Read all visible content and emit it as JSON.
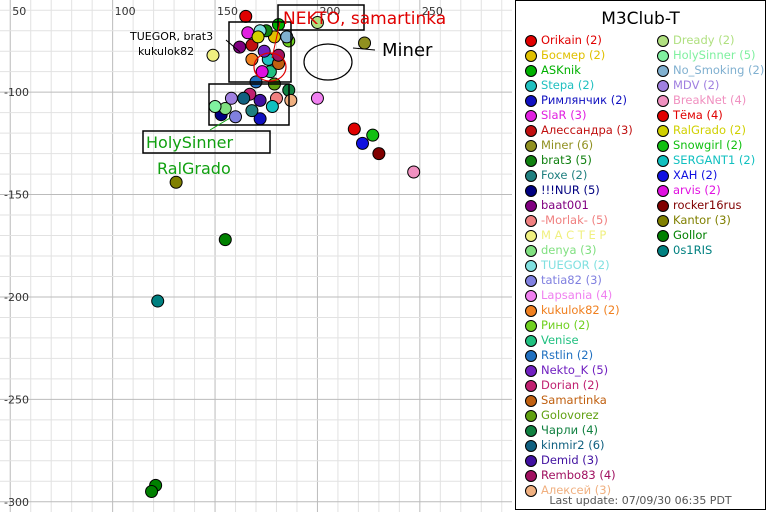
{
  "chart_data": {
    "type": "scatter",
    "title": "M3Club-T",
    "x_ticks": [
      50,
      100,
      150,
      200,
      250
    ],
    "y_ticks": [
      -100,
      -150,
      -200,
      -250,
      -300
    ],
    "xlim": [
      45,
      295
    ],
    "ylim": [
      -305,
      -55
    ],
    "grid": true,
    "legend_placement": "right",
    "series": [
      {
        "name": "Orikain (2)",
        "color": "#e00000",
        "points": [
          [
            165,
            -63
          ]
        ]
      },
      {
        "name": "Босмер (2)",
        "color": "#e0c000",
        "points": [
          [
            179,
            -73
          ]
        ]
      },
      {
        "name": "ASKnik",
        "color": "#00b000",
        "points": [
          [
            181,
            -67
          ]
        ]
      },
      {
        "name": "Stepa (2)",
        "color": "#20c0c0",
        "points": [
          [
            176,
            -84
          ]
        ]
      },
      {
        "name": "Римлянчик (2)",
        "color": "#1010c0",
        "points": [
          [
            172,
            -113
          ]
        ]
      },
      {
        "name": "SlaR (3)",
        "color": "#e020e0",
        "points": [
          [
            166,
            -71
          ]
        ]
      },
      {
        "name": "Алессандра (3)",
        "color": "#c01010",
        "points": [
          [
            168,
            -77
          ]
        ]
      },
      {
        "name": "Miner (6)",
        "color": "#909020",
        "points": [
          [
            223,
            -76
          ]
        ]
      },
      {
        "name": "brat3 (5)",
        "color": "#108010",
        "points": [
          [
            175,
            -70
          ]
        ]
      },
      {
        "name": "Foxe (2)",
        "color": "#208080",
        "points": [
          [
            168,
            -109
          ]
        ]
      },
      {
        "name": "!!!NUR (5)",
        "color": "#000080",
        "points": [
          [
            153,
            -111
          ]
        ]
      },
      {
        "name": "baat001",
        "color": "#800080",
        "points": [
          [
            162,
            -78
          ]
        ]
      },
      {
        "name": "-Morlak- (5)",
        "color": "#f08080",
        "points": [
          [
            180,
            -103
          ]
        ]
      },
      {
        "name": "М А С Т Е Р",
        "color": "#f0f080",
        "points": [
          [
            149,
            -82
          ]
        ]
      },
      {
        "name": "denya (3)",
        "color": "#80e080",
        "points": [
          [
            155,
            -108
          ]
        ]
      },
      {
        "name": "TUEGOR (2)",
        "color": "#80e0e0",
        "points": [
          [
            172,
            -70
          ]
        ]
      },
      {
        "name": "tatia82 (3)",
        "color": "#8080e0",
        "points": [
          [
            160,
            -112
          ]
        ]
      },
      {
        "name": "Lapsania (4)",
        "color": "#f080f0",
        "points": [
          [
            200,
            -103
          ]
        ]
      },
      {
        "name": "kukulok82 (2)",
        "color": "#f08020",
        "points": [
          [
            168,
            -84
          ]
        ]
      },
      {
        "name": "Рино (2)",
        "color": "#70d020",
        "points": [
          [
            186,
            -75
          ]
        ]
      },
      {
        "name": "Venise",
        "color": "#20c080",
        "points": [
          [
            177,
            -90
          ]
        ]
      },
      {
        "name": "Rstlin (2)",
        "color": "#2070c0",
        "points": [
          [
            170,
            -95
          ]
        ]
      },
      {
        "name": "Nekto_K (5)",
        "color": "#7020c0",
        "points": [
          [
            174,
            -80
          ]
        ]
      },
      {
        "name": "Dorian (2)",
        "color": "#c02070",
        "points": [
          [
            167,
            -101
          ]
        ]
      },
      {
        "name": "Samartinka",
        "color": "#c06010",
        "points": [
          [
            181,
            -86
          ]
        ]
      },
      {
        "name": "Golovorez",
        "color": "#60a010",
        "points": [
          [
            179,
            -96
          ]
        ]
      },
      {
        "name": "Чарли (4)",
        "color": "#108040",
        "points": [
          [
            186,
            -99
          ]
        ]
      },
      {
        "name": "kinmir2 (6)",
        "color": "#106080",
        "points": [
          [
            164,
            -103
          ]
        ]
      },
      {
        "name": "Demid (3)",
        "color": "#4010a0",
        "points": [
          [
            172,
            -104
          ]
        ]
      },
      {
        "name": "Rembo83 (4)",
        "color": "#a01060",
        "points": [
          [
            181,
            -82
          ]
        ]
      },
      {
        "name": "Алексей (3)",
        "color": "#f0b080",
        "points": [
          [
            187,
            -104
          ]
        ]
      },
      {
        "name": "Dready (2)",
        "color": "#b0e080",
        "points": [
          [
            200,
            -66
          ]
        ]
      },
      {
        "name": "HolySinner (5)",
        "color": "#80f0a0",
        "points": [
          [
            150,
            -107
          ]
        ]
      },
      {
        "name": "No_Smoking (2)",
        "color": "#80b0d0",
        "points": [
          [
            185,
            -73
          ]
        ]
      },
      {
        "name": "MDV (2)",
        "color": "#a080e0",
        "points": [
          [
            158,
            -103
          ]
        ]
      },
      {
        "name": "BreakNet (4)",
        "color": "#f090c0",
        "points": [
          [
            247,
            -139
          ]
        ]
      },
      {
        "name": "Тёма (4)",
        "color": "#e00000",
        "points": [
          [
            218,
            -118
          ]
        ]
      },
      {
        "name": "RalGrado (2)",
        "color": "#d0d000",
        "points": [
          [
            171,
            -73
          ]
        ]
      },
      {
        "name": "Snowgirl (2)",
        "color": "#10c010",
        "points": [
          [
            227,
            -121
          ]
        ]
      },
      {
        "name": "SERGANT1 (2)",
        "color": "#10c0c0",
        "points": [
          [
            178,
            -107
          ]
        ]
      },
      {
        "name": "ХАН (2)",
        "color": "#1010e0",
        "points": [
          [
            222,
            -125
          ]
        ]
      },
      {
        "name": "arvis (2)",
        "color": "#e010e0",
        "points": [
          [
            173,
            -90
          ]
        ]
      },
      {
        "name": "rocker16rus",
        "color": "#800000",
        "points": [
          [
            230,
            -130
          ]
        ]
      },
      {
        "name": "Kantor (3)",
        "color": "#808000",
        "points": [
          [
            131,
            -144
          ]
        ]
      },
      {
        "name": "Gollor",
        "color": "#008000",
        "points": [
          [
            155,
            -172
          ],
          [
            121,
            -292
          ],
          [
            119,
            -295
          ]
        ]
      },
      {
        "name": "0s1RIS",
        "color": "#008080",
        "points": [
          [
            122,
            -202
          ]
        ]
      }
    ]
  },
  "legend": {
    "left": [
      {
        "label": "Orikain (2)",
        "color": "#e00000"
      },
      {
        "label": "Босмер (2)",
        "color": "#e0c000"
      },
      {
        "label": "ASKnik",
        "color": "#00b000"
      },
      {
        "label": "Stepa (2)",
        "color": "#20c0c0"
      },
      {
        "label": "Римлянчик (2)",
        "color": "#1010c0"
      },
      {
        "label": "SlaR (3)",
        "color": "#e020e0"
      },
      {
        "label": "Алессандра (3)",
        "color": "#c01010"
      },
      {
        "label": "Miner (6)",
        "color": "#909020"
      },
      {
        "label": "brat3 (5)",
        "color": "#108010"
      },
      {
        "label": "Foxe (2)",
        "color": "#208080"
      },
      {
        "label": "!!!NUR (5)",
        "color": "#000080"
      },
      {
        "label": "baat001",
        "color": "#800080"
      },
      {
        "label": "-Morlak- (5)",
        "color": "#f08080"
      },
      {
        "label": "М А С Т Е Р",
        "color": "#f0f080"
      },
      {
        "label": "denya (3)",
        "color": "#80e080"
      },
      {
        "label": "TUEGOR (2)",
        "color": "#80e0e0"
      },
      {
        "label": "tatia82 (3)",
        "color": "#8080e0"
      },
      {
        "label": "Lapsania (4)",
        "color": "#f080f0"
      },
      {
        "label": "kukulok82 (2)",
        "color": "#f08020"
      },
      {
        "label": "Рино (2)",
        "color": "#70d020"
      },
      {
        "label": "Venise",
        "color": "#20c080"
      },
      {
        "label": "Rstlin (2)",
        "color": "#2070c0"
      },
      {
        "label": "Nekto_K (5)",
        "color": "#7020c0"
      },
      {
        "label": "Dorian (2)",
        "color": "#c02070"
      },
      {
        "label": "Samartinka",
        "color": "#c06010"
      },
      {
        "label": "Golovorez",
        "color": "#60a010"
      },
      {
        "label": "Чарли (4)",
        "color": "#108040"
      },
      {
        "label": "kinmir2 (6)",
        "color": "#106080"
      },
      {
        "label": "Demid (3)",
        "color": "#4010a0"
      },
      {
        "label": "Rembo83 (4)",
        "color": "#a01060"
      },
      {
        "label": "Алексей (3)",
        "color": "#f0b080"
      }
    ],
    "right": [
      {
        "label": "Dready (2)",
        "color": "#b0e080"
      },
      {
        "label": "HolySinner (5)",
        "color": "#80f0a0"
      },
      {
        "label": "No_Smoking (2)",
        "color": "#80b0d0"
      },
      {
        "label": "MDV (2)",
        "color": "#a080e0"
      },
      {
        "label": "BreakNet (4)",
        "color": "#f090c0"
      },
      {
        "label": "Тёма (4)",
        "color": "#e00000"
      },
      {
        "label": "RalGrado (2)",
        "color": "#d0d000"
      },
      {
        "label": "Snowgirl (2)",
        "color": "#10c010"
      },
      {
        "label": "SERGANT1 (2)",
        "color": "#10c0c0"
      },
      {
        "label": "ХАН (2)",
        "color": "#1010e0"
      },
      {
        "label": "arvis (2)",
        "color": "#e010e0"
      },
      {
        "label": "rocker16rus",
        "color": "#800000"
      },
      {
        "label": "Kantor (3)",
        "color": "#808000"
      },
      {
        "label": "Gollor",
        "color": "#008000"
      },
      {
        "label": "0s1RIS",
        "color": "#008080"
      }
    ]
  },
  "annotations": [
    {
      "text": "NEKTO, samartinka",
      "color": "#e00000"
    },
    {
      "text": "TUEGOR, brat3",
      "color": "#000000"
    },
    {
      "text": "kukulok82",
      "color": "#000000"
    },
    {
      "text": "Miner",
      "color": "#000000"
    },
    {
      "text": "HolySinner",
      "color": "#10a010"
    },
    {
      "text": "RalGrado",
      "color": "#10a010"
    }
  ],
  "footer": "Last update: 07/09/30 06:35 PDT"
}
